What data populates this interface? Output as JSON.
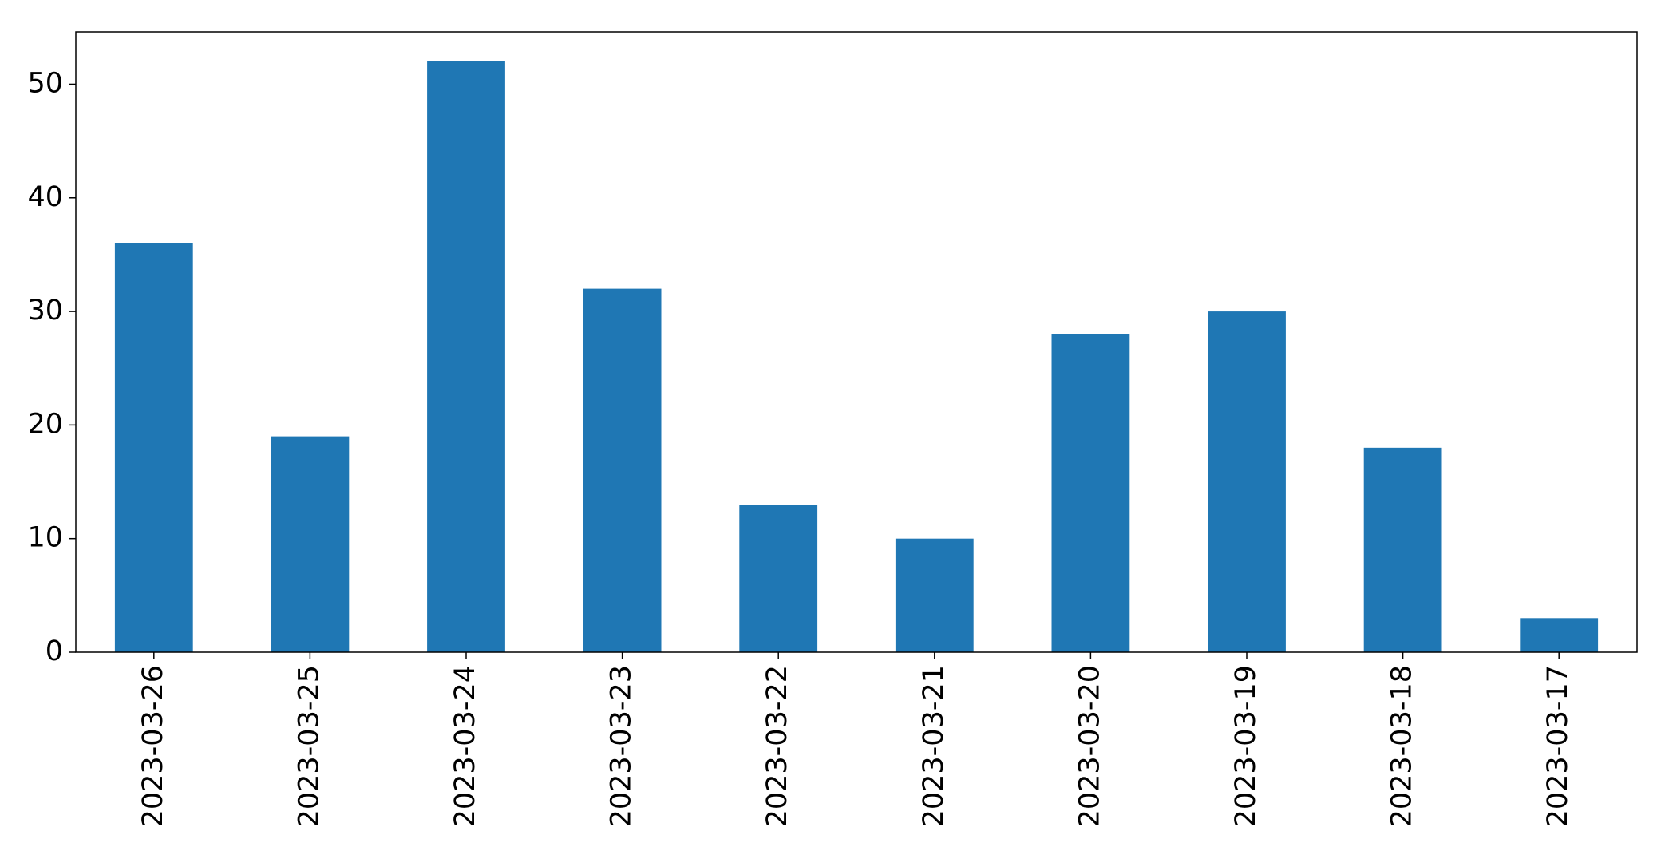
{
  "chart_data": {
    "type": "bar",
    "categories": [
      "2023-03-26",
      "2023-03-25",
      "2023-03-24",
      "2023-03-23",
      "2023-03-22",
      "2023-03-21",
      "2023-03-20",
      "2023-03-19",
      "2023-03-18",
      "2023-03-17"
    ],
    "values": [
      36,
      19,
      52,
      32,
      13,
      10,
      28,
      30,
      18,
      3
    ],
    "color": "#1f77b4",
    "ylim": [
      0,
      54.6
    ],
    "yticks": [
      0,
      10,
      20,
      30,
      40,
      50
    ],
    "grid": false
  }
}
